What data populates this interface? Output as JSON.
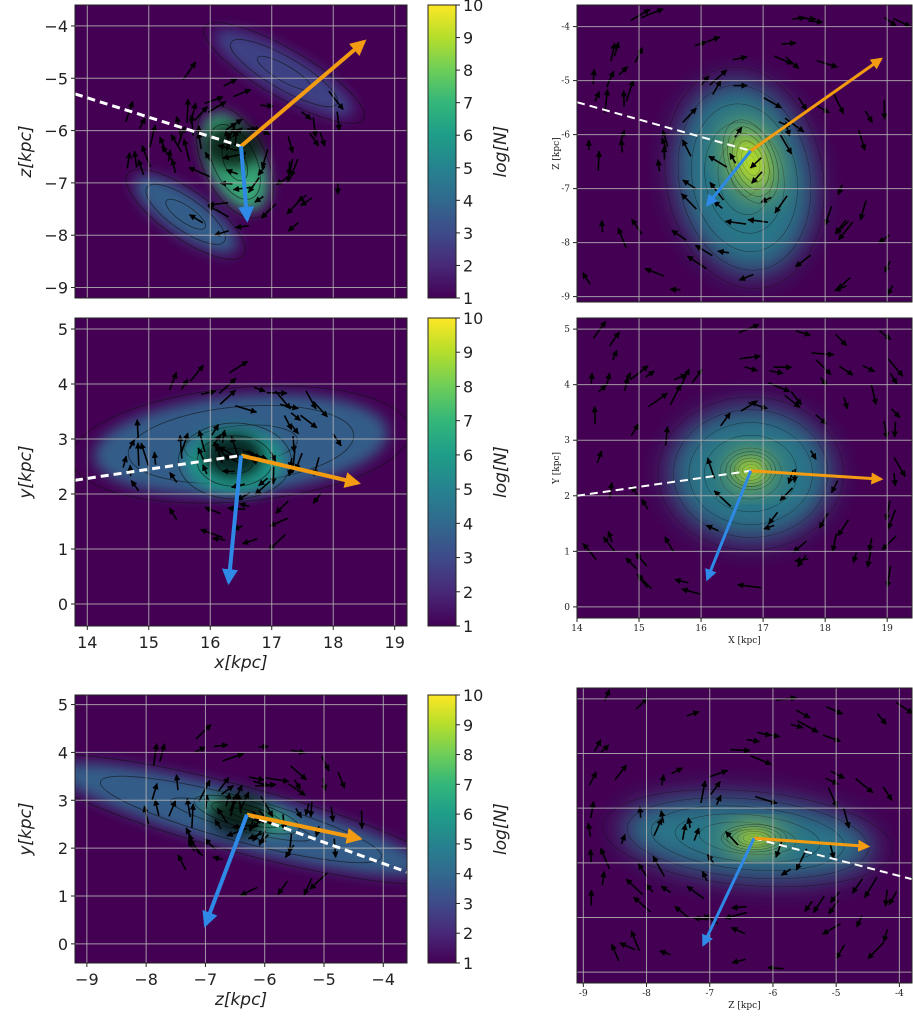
{
  "colors": {
    "background": "#440154",
    "arrow_primary": "#f39c12",
    "arrow_secondary": "#2e8ae6",
    "trend_line": "#ffffff",
    "velocity_arrows": "#000000",
    "grid": "#b4b4b4"
  },
  "colorscale": [
    "#440154",
    "#482878",
    "#3e4a89",
    "#31688e",
    "#26828e",
    "#1f9e89",
    "#35b779",
    "#6ece58",
    "#b5de2b",
    "#fde725"
  ],
  "chart_data": [
    {
      "type": "heatmap",
      "panel": "left-top",
      "description_visible": "2D histogram with contours and velocity arrows",
      "xlim": [
        13.8,
        19.2
      ],
      "ylim": [
        -9.2,
        -3.6
      ],
      "xticks": [],
      "yticks": [
        -9,
        -8,
        -7,
        -6,
        -5,
        -4
      ],
      "ytick_labels": [
        "−9",
        "−8",
        "−7",
        "−6",
        "−5",
        "−4"
      ],
      "xlabel": "",
      "ylabel": "z[kpc]",
      "colorbar": {
        "label": "log[N]",
        "ticks": [
          "1",
          "2",
          "3",
          "4",
          "5",
          "6",
          "7",
          "8",
          "9",
          "10"
        ],
        "range": [
          1,
          10
        ]
      },
      "center": [
        16.5,
        -6.3
      ],
      "primary_arrow_end": [
        18.5,
        -4.3
      ],
      "secondary_arrow_end": [
        16.6,
        -7.7
      ],
      "trend_line": {
        "x": [
          13.8,
          16.5
        ],
        "y": [
          -5.3,
          -6.3
        ]
      },
      "blobs": [
        {
          "x": 16.4,
          "y": -6.6,
          "rx": 0.45,
          "ry": 1.0,
          "tilt": 25,
          "level": 6.5
        },
        {
          "x": 15.6,
          "y": -7.6,
          "rx": 1.0,
          "ry": 0.4,
          "tilt": -35,
          "level": 4.2
        },
        {
          "x": 17.2,
          "y": -4.9,
          "rx": 1.3,
          "ry": 0.4,
          "tilt": -30,
          "level": 3.2
        }
      ]
    },
    {
      "type": "heatmap",
      "panel": "right-top",
      "description_visible": "smoothed density with contours and velocity field",
      "xlim": [
        14.0,
        19.4
      ],
      "ylim": [
        -9.1,
        -3.6
      ],
      "xticks": [],
      "yticks": [
        -9,
        -8,
        -7,
        -6,
        -5,
        -4
      ],
      "ytick_labels": [
        "-9",
        "-8",
        "-7",
        "-6",
        "-5",
        "-4"
      ],
      "xlabel": "",
      "ylabel": "Z [kpc]",
      "center": [
        16.8,
        -6.3
      ],
      "primary_arrow_end": [
        18.9,
        -4.6
      ],
      "secondary_arrow_end": [
        16.1,
        -7.3
      ],
      "trend_line": {
        "x": [
          14.0,
          16.8
        ],
        "y": [
          -5.4,
          -6.3
        ]
      },
      "blobs": [
        {
          "x": 16.8,
          "y": -6.5,
          "rx": 0.35,
          "ry": 0.7,
          "tilt": 20,
          "level": 8.5
        },
        {
          "x": 16.7,
          "y": -6.8,
          "rx": 1.1,
          "ry": 1.8,
          "tilt": 10,
          "level": 4.5
        }
      ]
    },
    {
      "type": "heatmap",
      "panel": "left-middle",
      "description_visible": "2D histogram with contours and velocity arrows",
      "xlim": [
        13.8,
        19.2
      ],
      "ylim": [
        -0.4,
        5.2
      ],
      "xticks": [
        14,
        15,
        16,
        17,
        18,
        19
      ],
      "xtick_labels": [
        "14",
        "15",
        "16",
        "17",
        "18",
        "19"
      ],
      "yticks": [
        0,
        1,
        2,
        3,
        4,
        5
      ],
      "ytick_labels": [
        "0",
        "1",
        "2",
        "3",
        "4",
        "5"
      ],
      "xlabel": "x[kpc]",
      "ylabel": "y[kpc]",
      "colorbar": {
        "label": "log[N]",
        "ticks": [
          "1",
          "2",
          "3",
          "4",
          "5",
          "6",
          "7",
          "8",
          "9",
          "10"
        ],
        "range": [
          1,
          10
        ]
      },
      "center": [
        16.5,
        2.7
      ],
      "primary_arrow_end": [
        18.4,
        2.2
      ],
      "secondary_arrow_end": [
        16.3,
        0.4
      ],
      "trend_line": {
        "x": [
          13.8,
          16.5
        ],
        "y": [
          2.25,
          2.7
        ]
      },
      "blobs": [
        {
          "x": 16.4,
          "y": 2.6,
          "rx": 0.8,
          "ry": 0.6,
          "tilt": 0,
          "level": 6.0
        },
        {
          "x": 16.5,
          "y": 2.9,
          "rx": 2.4,
          "ry": 0.9,
          "tilt": 5,
          "level": 3.5
        }
      ]
    },
    {
      "type": "heatmap",
      "panel": "right-middle",
      "description_visible": "smoothed density with contours and velocity field",
      "xlim": [
        14.0,
        19.4
      ],
      "ylim": [
        -0.2,
        5.2
      ],
      "xticks": [
        14,
        15,
        16,
        17,
        18,
        19
      ],
      "xtick_labels": [
        "14",
        "15",
        "16",
        "17",
        "18",
        "19"
      ],
      "yticks": [
        0,
        1,
        2,
        3,
        4,
        5
      ],
      "ytick_labels": [
        "0",
        "1",
        "2",
        "3",
        "4",
        "5"
      ],
      "xlabel": "X [kpc]",
      "ylabel": "Y [kpc]",
      "center": [
        16.8,
        2.45
      ],
      "primary_arrow_end": [
        18.9,
        2.3
      ],
      "secondary_arrow_end": [
        16.1,
        0.5
      ],
      "trend_line": {
        "x": [
          14.0,
          16.8
        ],
        "y": [
          2.0,
          2.45
        ]
      },
      "blobs": [
        {
          "x": 16.8,
          "y": 2.45,
          "rx": 0.35,
          "ry": 0.3,
          "tilt": 0,
          "level": 9.0
        },
        {
          "x": 16.8,
          "y": 2.4,
          "rx": 1.3,
          "ry": 1.2,
          "tilt": 0,
          "level": 4.5
        }
      ]
    },
    {
      "type": "heatmap",
      "panel": "left-bottom",
      "description_visible": "2D histogram with contours and velocity arrows",
      "xlim": [
        -9.2,
        -3.6
      ],
      "ylim": [
        -0.4,
        5.2
      ],
      "xticks": [
        -9,
        -8,
        -7,
        -6,
        -5,
        -4
      ],
      "xtick_labels": [
        "−9",
        "−8",
        "−7",
        "−6",
        "−5",
        "−4"
      ],
      "yticks": [
        0,
        1,
        2,
        3,
        4,
        5
      ],
      "ytick_labels": [
        "0",
        "1",
        "2",
        "3",
        "4",
        "5"
      ],
      "xlabel": "z[kpc]",
      "ylabel": "y[kpc]",
      "colorbar": {
        "label": "log[N]",
        "ticks": [
          "1",
          "2",
          "3",
          "4",
          "5",
          "6",
          "7",
          "8",
          "9",
          "10"
        ],
        "range": [
          1,
          10
        ]
      },
      "center": [
        -6.3,
        2.7
      ],
      "primary_arrow_end": [
        -4.4,
        2.2
      ],
      "secondary_arrow_end": [
        -7.0,
        0.4
      ],
      "trend_line": {
        "x": [
          -6.3,
          -3.6
        ],
        "y": [
          2.7,
          1.5
        ]
      },
      "blobs": [
        {
          "x": -6.3,
          "y": 2.7,
          "rx": 0.8,
          "ry": 0.25,
          "tilt": -15,
          "level": 6.5
        },
        {
          "x": -6.4,
          "y": 2.6,
          "rx": 3.2,
          "ry": 0.6,
          "tilt": -15,
          "level": 3.8
        }
      ]
    },
    {
      "type": "heatmap",
      "panel": "right-bottom",
      "description_visible": "smoothed density with contours and velocity field",
      "xlim": [
        -9.1,
        -3.8
      ],
      "ylim": [
        -0.2,
        5.2
      ],
      "xticks": [
        -9,
        -8,
        -7,
        -6,
        -5,
        -4
      ],
      "xtick_labels": [
        "-9",
        "-8",
        "-7",
        "-6",
        "-5",
        "-4"
      ],
      "yticks": [],
      "xlabel": "Z [kpc]",
      "ylabel": "",
      "center": [
        -6.3,
        2.45
      ],
      "primary_arrow_end": [
        -4.5,
        2.3
      ],
      "secondary_arrow_end": [
        -7.1,
        0.5
      ],
      "trend_line": {
        "x": [
          -6.3,
          -3.8
        ],
        "y": [
          2.45,
          1.7
        ]
      },
      "blobs": [
        {
          "x": -6.3,
          "y": 2.45,
          "rx": 0.45,
          "ry": 0.22,
          "tilt": 0,
          "level": 9.0
        },
        {
          "x": -6.4,
          "y": 2.45,
          "rx": 2.0,
          "ry": 0.75,
          "tilt": -5,
          "level": 4.5
        }
      ]
    }
  ]
}
